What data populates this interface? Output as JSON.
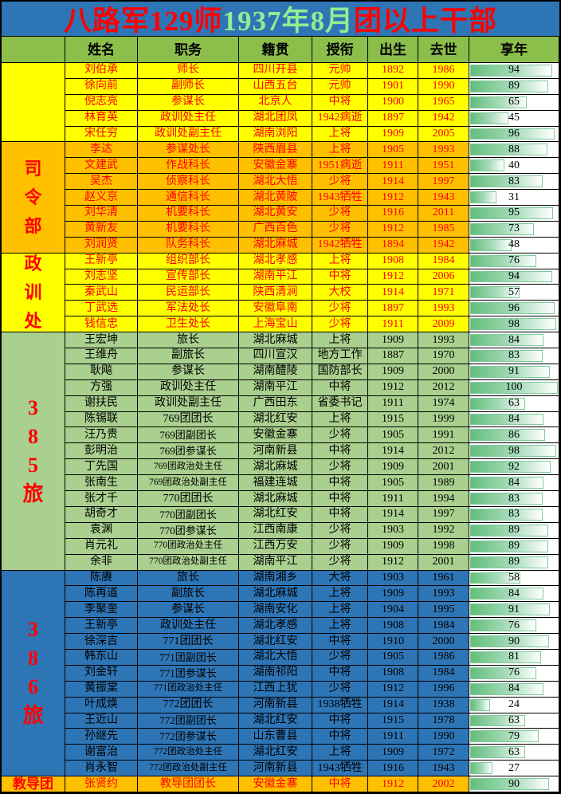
{
  "title": {
    "segments": [
      {
        "text": "八路军129师",
        "color": "#FF0000"
      },
      {
        "text": "1937年8月",
        "color": "#90EE90"
      },
      {
        "text": "团以上干部",
        "color": "#FF0000"
      }
    ],
    "bg": "#2E75B6"
  },
  "colors": {
    "header_bg": "#8CBE4C",
    "border": "#000000",
    "bar_fill": "#63BE7B",
    "bar_number": "#000000",
    "group_label_text": "#FF0000",
    "yellow_section_bg": "#FFFF00",
    "orange_section_bg": "#FFC000",
    "green_section_bg": "#A9D08E",
    "blue_section_bg": "#2E75B6",
    "red_text": "#FF0000",
    "black_text": "#000000"
  },
  "chart_data": {
    "type": "table",
    "title": "八路军129师1937年8月团以上干部",
    "columns": [
      "姓名",
      "职务",
      "籍贯",
      "授衔",
      "出生",
      "去世",
      "享年"
    ],
    "bar_column": "享年",
    "bar_max": 100,
    "groups": [
      {
        "id": "division-leaders",
        "label": "",
        "label_layout": "vertical",
        "bg": "#FFFF00",
        "text": "#FF0000",
        "rows": [
          [
            "刘伯承",
            "师长",
            "四川开县",
            "元帅",
            1892,
            1986,
            94
          ],
          [
            "徐向前",
            "副师长",
            "山西五台",
            "元帅",
            1901,
            1990,
            89
          ],
          [
            "倪志亮",
            "参谋长",
            "北京人",
            "中将",
            1900,
            1965,
            65
          ],
          [
            "林育英",
            "政训处主任",
            "湖北团凤",
            "1942病逝",
            1897,
            1942,
            45
          ],
          [
            "宋任穷",
            "政训处副主任",
            "湖南浏阳",
            "上将",
            1909,
            2005,
            96
          ]
        ]
      },
      {
        "id": "headquarters",
        "label": "司令部",
        "label_layout": "vertical",
        "bg": "#FFC000",
        "text": "#FF0000",
        "rows": [
          [
            "李达",
            "参谋处长",
            "陕西眉县",
            "上将",
            1905,
            1993,
            88
          ],
          [
            "文建武",
            "作战科长",
            "安徽金寨",
            "1951病逝",
            1911,
            1951,
            40
          ],
          [
            "吴杰",
            "侦察科长",
            "湖北大悟",
            "少将",
            1914,
            1997,
            83
          ],
          [
            "赵义京",
            "通信科长",
            "湖北黄陂",
            "1943牺牲",
            1912,
            1943,
            31
          ],
          [
            "刘华清",
            "机要科长",
            "湖北黄安",
            "少将",
            1916,
            2011,
            95
          ],
          [
            "黄新友",
            "机要科长",
            "广西百色",
            "少将",
            1912,
            1985,
            73
          ],
          [
            "刘润贤",
            "队务科长",
            "湖北麻城",
            "1942牺牲",
            1894,
            1942,
            48
          ]
        ]
      },
      {
        "id": "political-training-office",
        "label": "政训处",
        "label_layout": "vertical",
        "bg": "#FFFF00",
        "text": "#FF0000",
        "rows": [
          [
            "王新亭",
            "组织部长",
            "湖北孝感",
            "上将",
            1908,
            1984,
            76
          ],
          [
            "刘志坚",
            "宣传部长",
            "湖南平江",
            "中将",
            1912,
            2006,
            94
          ],
          [
            "秦武山",
            "民运部长",
            "陕西清涧",
            "大校",
            1914,
            1971,
            57
          ],
          [
            "丁武选",
            "军法处长",
            "安徽阜南",
            "少将",
            1897,
            1993,
            96
          ],
          [
            "钱信忠",
            "卫生处长",
            "上海宝山",
            "少将",
            1911,
            2009,
            98
          ]
        ]
      },
      {
        "id": "brigade-385",
        "label": "385旅",
        "label_layout": "vertical",
        "bg": "#A9D08E",
        "text": "#000000",
        "rows": [
          [
            "王宏坤",
            "旅长",
            "湖北麻城",
            "上将",
            1909,
            1993,
            84
          ],
          [
            "王维舟",
            "副旅长",
            "四川宣汉",
            "地方工作",
            1887,
            1970,
            83
          ],
          [
            "耿飚",
            "参谋长",
            "湖南醴陵",
            "国防部长",
            1909,
            2000,
            91
          ],
          [
            "方强",
            "政训处主任",
            "湖南平江",
            "中将",
            1912,
            2012,
            100
          ],
          [
            "谢扶民",
            "政训处副主任",
            "广西田东",
            "省委书记",
            1911,
            1974,
            63
          ],
          [
            "陈锡联",
            "769团团长",
            "湖北红安",
            "上将",
            1915,
            1999,
            84
          ],
          [
            "汪乃贵",
            "769团副团长",
            "安徽金寨",
            "少将",
            1905,
            1991,
            86
          ],
          [
            "彭明治",
            "769团参谋长",
            "河南新县",
            "中将",
            1914,
            2012,
            98
          ],
          [
            "丁先国",
            "769团政治处主任",
            "湖北麻城",
            "少将",
            1909,
            2001,
            92
          ],
          [
            "张南生",
            "769团政治处副主任",
            "福建连城",
            "中将",
            1905,
            1989,
            84
          ],
          [
            "张才千",
            "770团团长",
            "湖北麻城",
            "中将",
            1911,
            1994,
            83
          ],
          [
            "胡奇才",
            "770团副团长",
            "湖北红安",
            "中将",
            1914,
            1997,
            83
          ],
          [
            "袁渊",
            "770团参谋长",
            "江西南康",
            "少将",
            1903,
            1992,
            89
          ],
          [
            "肖元礼",
            "770团政治处主任",
            "江西万安",
            "少将",
            1909,
            1998,
            89
          ],
          [
            "余非",
            "770团政治处副主任",
            "湖南平江",
            "少将",
            1912,
            2001,
            89
          ]
        ]
      },
      {
        "id": "brigade-386",
        "label": "386旅",
        "label_layout": "vertical",
        "bg": "#2E75B6",
        "text": "#000000",
        "rows": [
          [
            "陈赓",
            "旅长",
            "湖南湘乡",
            "大将",
            1903,
            1961,
            58
          ],
          [
            "陈再道",
            "副旅长",
            "湖北麻城",
            "上将",
            1909,
            1993,
            84
          ],
          [
            "李聚奎",
            "参谋长",
            "湖南安化",
            "上将",
            1904,
            1995,
            91
          ],
          [
            "王新亭",
            "政训处主任",
            "湖北孝感",
            "上将",
            1908,
            1984,
            76
          ],
          [
            "徐深吉",
            "771团团长",
            "湖北红安",
            "中将",
            1910,
            2000,
            90
          ],
          [
            "韩东山",
            "771团副团长",
            "湖北大悟",
            "少将",
            1905,
            1986,
            81
          ],
          [
            "刘金轩",
            "771团参谋长",
            "湖南祁阳",
            "中将",
            1908,
            1984,
            76
          ],
          [
            "黄振棠",
            "771团政治处主任",
            "江西上犹",
            "少将",
            1912,
            1996,
            84
          ],
          [
            "叶成焕",
            "772团团长",
            "河南新县",
            "1938牺牲",
            1914,
            1938,
            24
          ],
          [
            "王近山",
            "772团副团长",
            "湖北红安",
            "中将",
            1915,
            1978,
            63
          ],
          [
            "孙继先",
            "772团参谋长",
            "山东曹县",
            "中将",
            1911,
            1990,
            79
          ],
          [
            "谢富治",
            "772团政治处主任",
            "湖北红安",
            "上将",
            1909,
            1972,
            63
          ],
          [
            "肖永智",
            "772团政治处副主任",
            "河南新县",
            "1943牺牲",
            1916,
            1943,
            27
          ]
        ]
      },
      {
        "id": "training-regiment",
        "label": "教导团",
        "label_layout": "horizontal",
        "bg": "#FFC000",
        "text": "#FF0000",
        "rows": [
          [
            "张贤约",
            "教导团团长",
            "安徽金寨",
            "中将",
            1912,
            2002,
            90
          ]
        ]
      }
    ]
  }
}
